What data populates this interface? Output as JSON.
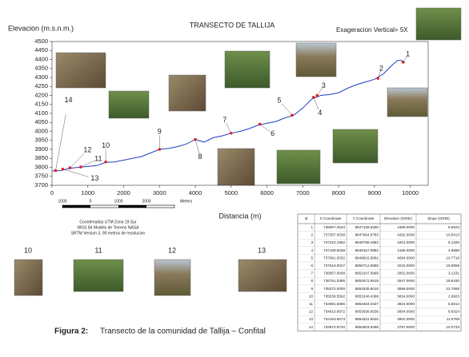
{
  "chart_data": {
    "type": "line",
    "title": "TRANSECTO DE TALLIJA",
    "ylabel": "Elevacion (m.s.n.m.)",
    "xlabel": "Distancia (m)",
    "annotation": "Exageracion Vertical= 5X",
    "xlim": [
      0,
      10500
    ],
    "ylim": [
      3700,
      4500
    ],
    "xticks": [
      0,
      1000,
      2000,
      3000,
      4000,
      5000,
      6000,
      7000,
      8000,
      9000,
      10000
    ],
    "yticks": [
      3700,
      3750,
      3800,
      3850,
      3900,
      3950,
      4000,
      4050,
      4100,
      4150,
      4200,
      4250,
      4300,
      4350,
      4400,
      4450,
      4500
    ],
    "series": [
      {
        "color": "#1f3fbf",
        "x": [
          0,
          250,
          500,
          750,
          1000,
          1250,
          1500,
          1750,
          2000,
          2250,
          2500,
          2750,
          3000,
          3250,
          3500,
          3750,
          4000,
          4250,
          4500,
          4750,
          5000,
          5250,
          5500,
          5750,
          6000,
          6250,
          6500,
          6750,
          7000,
          7250,
          7500,
          7750,
          8000,
          8250,
          8500,
          8750,
          9000,
          9250,
          9500,
          9650,
          9750,
          9850
        ],
        "values": [
          3780,
          3782,
          3795,
          3800,
          3805,
          3810,
          3828,
          3830,
          3840,
          3850,
          3860,
          3880,
          3900,
          3905,
          3915,
          3930,
          3955,
          3940,
          3965,
          3975,
          3990,
          4000,
          4015,
          4035,
          4045,
          4055,
          4075,
          4090,
          4130,
          4180,
          4200,
          4205,
          4215,
          4240,
          4260,
          4275,
          4290,
          4320,
          4370,
          4395,
          4395,
          4385
        ]
      },
      {
        "color": "#e02020",
        "x": [
          9800,
          9100,
          7400,
          7300,
          6700,
          5800,
          5000,
          4000,
          3000,
          1500,
          800,
          500,
          300,
          100
        ],
        "values": [
          4385,
          4295,
          4200,
          4190,
          4090,
          4040,
          3990,
          3955,
          3900,
          3830,
          3802,
          3797,
          3790,
          3782
        ],
        "labels": [
          "1",
          "2",
          "3",
          "4",
          "5",
          "6",
          "7",
          "8",
          "9",
          "10",
          "11",
          "12",
          "13",
          "14"
        ]
      }
    ]
  },
  "map_notes": [
    "Coordenadas UTM Zona 19 Sur",
    "WGS 84 Modelo de Terreno NASA",
    "SRTM Version 3, 90 metros de resolucion"
  ],
  "scale_bar": {
    "labels": [
      "1000",
      "0",
      "1000",
      "2000"
    ],
    "unit": "Meters"
  },
  "photo_labels": [
    "10",
    "11",
    "12",
    "13"
  ],
  "table": {
    "header": [
      "Id",
      "X Coordinate",
      "Y Coordinate",
      "Elevation (GRID)",
      "Slope (GRID)"
    ],
    "rows": [
      [
        "1",
        "736907.2543",
        "8847168.8290",
        "4389.0000",
        "8.6623"
      ],
      [
        "2",
        "737307.0038",
        "8847694.9783",
        "4292.0000",
        "10.8413"
      ],
      [
        "3",
        "737222.1552",
        "8848798.4983",
        "4201.0000",
        "6.1326"
      ],
      [
        "4",
        "737109.6038",
        "8849157.9992",
        "4186.0000",
        "4.9598"
      ],
      [
        "5",
        "737961.0032",
        "8849815.9891",
        "4094.0000",
        "10.7718"
      ],
      [
        "6",
        "737518.0027",
        "8850712.9855",
        "4043.0000",
        "19.8959"
      ],
      [
        "7",
        "736857.0008",
        "8851547.9968",
        "3952.0000",
        "3.1231"
      ],
      [
        "8",
        "736751.0385",
        "8852672.9519",
        "3947.0000",
        "29.5430"
      ],
      [
        "9",
        "735372.0000",
        "8852835.8010",
        "3898.0000",
        "22.7668"
      ],
      [
        "10",
        "735539.5592",
        "8853248.4368",
        "3834.0000",
        "2.6823"
      ],
      [
        "11",
        "734981.5066",
        "8853484.0327",
        "3819.0000",
        "5.5614"
      ],
      [
        "12",
        "734619.8972",
        "8853938.8536",
        "3804.0000",
        "8.8324"
      ],
      [
        "13",
        "734153.6573",
        "8854531.8620",
        "3802.0000",
        "11.0759"
      ],
      [
        "14",
        "733974.9720",
        "8854803.9286",
        "3797.0000",
        "10.0733"
      ]
    ]
  },
  "caption": {
    "label": "Figura 2:",
    "text": "Transecto de la comunidad de Tallija – Confital"
  }
}
